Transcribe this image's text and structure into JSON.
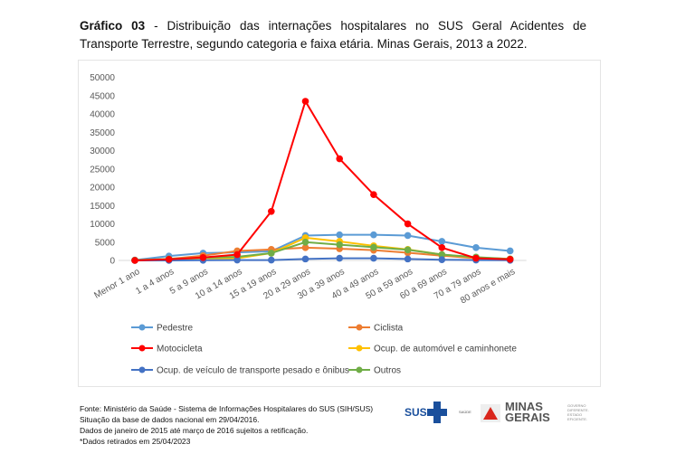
{
  "title": {
    "bold": "Gráfico 03",
    "text": " - Distribuição das internações hospitalares no SUS Geral Acidentes de Transporte Terrestre, segundo categoria e faixa etária. Minas Gerais, 2013 a 2022."
  },
  "chart_data": {
    "type": "line",
    "categories": [
      "Menor 1 ano",
      "1 a 4 anos",
      "5 a 9 anos",
      "10 a 14 anos",
      "15 a 19 anos",
      "20 a 29 anos",
      "30 a 39 anos",
      "40 a 49 anos",
      "50 a 59 anos",
      "60 a 69 anos",
      "70 a 79 anos",
      "80 anos e mais"
    ],
    "ylim": [
      0,
      50000
    ],
    "yticks": [
      "0",
      "5000",
      "10000",
      "15000",
      "20000",
      "25000",
      "30000",
      "35000",
      "40000",
      "45000",
      "50000"
    ],
    "grid": "baseline only",
    "legend": "bottom",
    "series": [
      {
        "name": "Pedestre",
        "color": "#5b9bd5",
        "values": [
          100,
          1200,
          2000,
          2200,
          2500,
          6800,
          7000,
          7000,
          6800,
          5200,
          3500,
          2600
        ]
      },
      {
        "name": "Ciclista",
        "color": "#ed7d31",
        "values": [
          50,
          400,
          1300,
          2600,
          3000,
          3500,
          3200,
          2800,
          2100,
          1300,
          600,
          300
        ]
      },
      {
        "name": "Motocicleta",
        "color": "#ff0000",
        "values": [
          0,
          300,
          800,
          1600,
          13400,
          43500,
          27800,
          18000,
          10000,
          3500,
          600,
          300
        ]
      },
      {
        "name": "Ocup. de automóvel e caminhonete",
        "color": "#ffc000",
        "values": [
          50,
          300,
          600,
          600,
          2000,
          6200,
          5200,
          4000,
          3000,
          1600,
          800,
          400
        ]
      },
      {
        "name": "Ocup. de veículo de transporte pesado e ônibus",
        "color": "#4472c4",
        "values": [
          0,
          0,
          50,
          100,
          100,
          400,
          600,
          600,
          400,
          200,
          100,
          50
        ]
      },
      {
        "name": "Outros",
        "color": "#70ad47",
        "values": [
          50,
          400,
          700,
          1000,
          2000,
          5000,
          4300,
          3600,
          2900,
          1600,
          900,
          400
        ]
      }
    ]
  },
  "footer": [
    "Fonte: Ministério da Saúde - Sistema de Informações Hospitalares do SUS (SIH/SUS)",
    "Situação da base de dados nacional em 29/04/2016.",
    "Dados de janeiro de 2015 até março de 2016 sujeitos a retificação.",
    "*Dados retirados em 25/04/2023"
  ],
  "logos": {
    "sus": "SUS",
    "saude": "SAÚDE",
    "minas": "MINAS",
    "gerais": "GERAIS",
    "gov": [
      "GOVERNO",
      "DIFERENTE.",
      "ESTADO",
      "EFICIENTE."
    ]
  }
}
